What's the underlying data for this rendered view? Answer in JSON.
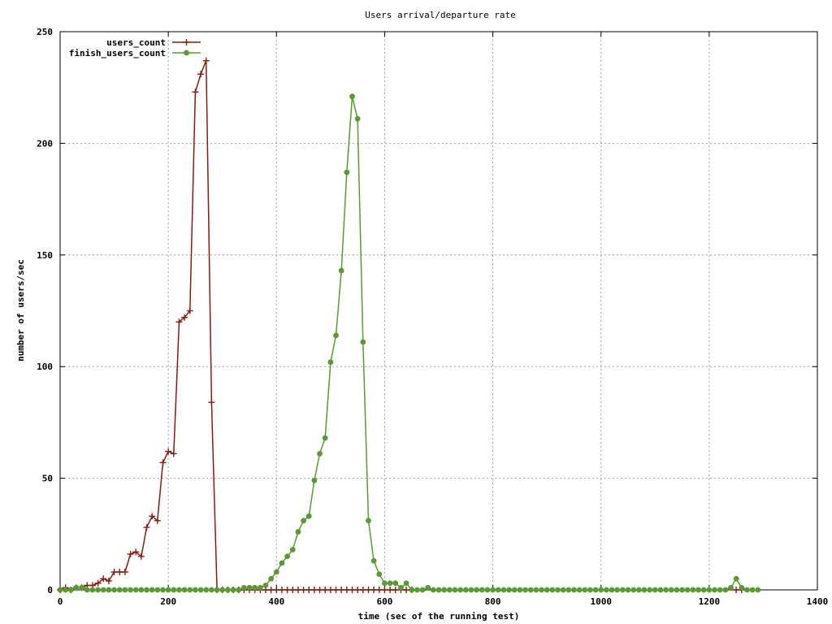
{
  "chart_data": {
    "type": "line",
    "title": "Users arrival/departure rate",
    "xlabel": "time (sec of the running test)",
    "ylabel": "number of users/sec",
    "xlim": [
      0,
      1400
    ],
    "ylim": [
      0,
      250
    ],
    "xticks": [
      0,
      200,
      400,
      600,
      800,
      1000,
      1200,
      1400
    ],
    "yticks": [
      0,
      50,
      100,
      150,
      200,
      250
    ],
    "grid": true,
    "legend_position": "top-left",
    "series": [
      {
        "name": "users_count",
        "color": "#8b1a0e",
        "marker": "plus",
        "points": [
          [
            0,
            0
          ],
          [
            10,
            1
          ],
          [
            20,
            0
          ],
          [
            30,
            1
          ],
          [
            40,
            1
          ],
          [
            50,
            2
          ],
          [
            60,
            2
          ],
          [
            70,
            3
          ],
          [
            80,
            5
          ],
          [
            90,
            4
          ],
          [
            100,
            8
          ],
          [
            110,
            8
          ],
          [
            120,
            8
          ],
          [
            130,
            16
          ],
          [
            140,
            17
          ],
          [
            150,
            15
          ],
          [
            160,
            28
          ],
          [
            170,
            33
          ],
          [
            180,
            31
          ],
          [
            190,
            57
          ],
          [
            200,
            62
          ],
          [
            210,
            61
          ],
          [
            220,
            120
          ],
          [
            230,
            122
          ],
          [
            240,
            125
          ],
          [
            250,
            223
          ],
          [
            260,
            231
          ],
          [
            270,
            237
          ],
          [
            280,
            84
          ],
          [
            290,
            0
          ],
          [
            300,
            0
          ],
          [
            310,
            0
          ],
          [
            320,
            0
          ],
          [
            330,
            0
          ],
          [
            340,
            0
          ],
          [
            350,
            0
          ],
          [
            360,
            0
          ],
          [
            370,
            0
          ],
          [
            380,
            0
          ],
          [
            390,
            0
          ],
          [
            400,
            0
          ],
          [
            410,
            0
          ],
          [
            420,
            0
          ],
          [
            430,
            0
          ],
          [
            440,
            0
          ],
          [
            450,
            0
          ],
          [
            460,
            0
          ],
          [
            470,
            0
          ],
          [
            480,
            0
          ],
          [
            490,
            0
          ],
          [
            500,
            0
          ],
          [
            510,
            0
          ],
          [
            520,
            0
          ],
          [
            530,
            0
          ],
          [
            540,
            0
          ],
          [
            550,
            0
          ],
          [
            560,
            0
          ],
          [
            570,
            0
          ],
          [
            580,
            0
          ],
          [
            590,
            0
          ],
          [
            600,
            0
          ],
          [
            610,
            0
          ],
          [
            620,
            0
          ],
          [
            630,
            0
          ],
          [
            640,
            0
          ],
          [
            650,
            0
          ],
          [
            1250,
            0
          ],
          [
            1260,
            0
          ]
        ]
      },
      {
        "name": "finish_users_count",
        "color": "#5a9a32",
        "marker": "dot",
        "points": [
          [
            0,
            0
          ],
          [
            10,
            0
          ],
          [
            20,
            0
          ],
          [
            30,
            1
          ],
          [
            40,
            1
          ],
          [
            50,
            0
          ],
          [
            60,
            0
          ],
          [
            70,
            0
          ],
          [
            80,
            0
          ],
          [
            90,
            0
          ],
          [
            100,
            0
          ],
          [
            110,
            0
          ],
          [
            120,
            0
          ],
          [
            130,
            0
          ],
          [
            140,
            0
          ],
          [
            150,
            0
          ],
          [
            160,
            0
          ],
          [
            170,
            0
          ],
          [
            180,
            0
          ],
          [
            190,
            0
          ],
          [
            200,
            0
          ],
          [
            210,
            0
          ],
          [
            220,
            0
          ],
          [
            230,
            0
          ],
          [
            240,
            0
          ],
          [
            250,
            0
          ],
          [
            260,
            0
          ],
          [
            270,
            0
          ],
          [
            280,
            0
          ],
          [
            290,
            0
          ],
          [
            300,
            0
          ],
          [
            310,
            0
          ],
          [
            320,
            0
          ],
          [
            330,
            0
          ],
          [
            340,
            1
          ],
          [
            350,
            1
          ],
          [
            360,
            1
          ],
          [
            370,
            1
          ],
          [
            380,
            2
          ],
          [
            390,
            5
          ],
          [
            400,
            8
          ],
          [
            410,
            12
          ],
          [
            420,
            15
          ],
          [
            430,
            18
          ],
          [
            440,
            26
          ],
          [
            450,
            31
          ],
          [
            460,
            33
          ],
          [
            470,
            49
          ],
          [
            480,
            61
          ],
          [
            490,
            68
          ],
          [
            500,
            102
          ],
          [
            510,
            114
          ],
          [
            520,
            143
          ],
          [
            530,
            187
          ],
          [
            540,
            221
          ],
          [
            550,
            211
          ],
          [
            560,
            111
          ],
          [
            570,
            31
          ],
          [
            580,
            13
          ],
          [
            590,
            7
          ],
          [
            600,
            3
          ],
          [
            610,
            3
          ],
          [
            620,
            3
          ],
          [
            630,
            1
          ],
          [
            640,
            3
          ],
          [
            650,
            0
          ],
          [
            660,
            0
          ],
          [
            670,
            0
          ],
          [
            680,
            1
          ],
          [
            690,
            0
          ],
          [
            700,
            0
          ],
          [
            710,
            0
          ],
          [
            720,
            0
          ],
          [
            730,
            0
          ],
          [
            740,
            0
          ],
          [
            750,
            0
          ],
          [
            760,
            0
          ],
          [
            770,
            0
          ],
          [
            780,
            0
          ],
          [
            790,
            0
          ],
          [
            800,
            0
          ],
          [
            810,
            0
          ],
          [
            820,
            0
          ],
          [
            830,
            0
          ],
          [
            840,
            0
          ],
          [
            850,
            0
          ],
          [
            860,
            0
          ],
          [
            870,
            0
          ],
          [
            880,
            0
          ],
          [
            890,
            0
          ],
          [
            900,
            0
          ],
          [
            910,
            0
          ],
          [
            920,
            0
          ],
          [
            930,
            0
          ],
          [
            940,
            0
          ],
          [
            950,
            0
          ],
          [
            960,
            0
          ],
          [
            970,
            0
          ],
          [
            980,
            0
          ],
          [
            990,
            0
          ],
          [
            1000,
            0
          ],
          [
            1010,
            0
          ],
          [
            1020,
            0
          ],
          [
            1030,
            0
          ],
          [
            1040,
            0
          ],
          [
            1050,
            0
          ],
          [
            1060,
            0
          ],
          [
            1070,
            0
          ],
          [
            1080,
            0
          ],
          [
            1090,
            0
          ],
          [
            1100,
            0
          ],
          [
            1110,
            0
          ],
          [
            1120,
            0
          ],
          [
            1130,
            0
          ],
          [
            1140,
            0
          ],
          [
            1150,
            0
          ],
          [
            1160,
            0
          ],
          [
            1170,
            0
          ],
          [
            1180,
            0
          ],
          [
            1190,
            0
          ],
          [
            1200,
            0
          ],
          [
            1210,
            0
          ],
          [
            1220,
            0
          ],
          [
            1230,
            0
          ],
          [
            1240,
            1
          ],
          [
            1250,
            5
          ],
          [
            1260,
            1
          ],
          [
            1270,
            0
          ],
          [
            1280,
            0
          ],
          [
            1290,
            0
          ]
        ]
      }
    ]
  }
}
